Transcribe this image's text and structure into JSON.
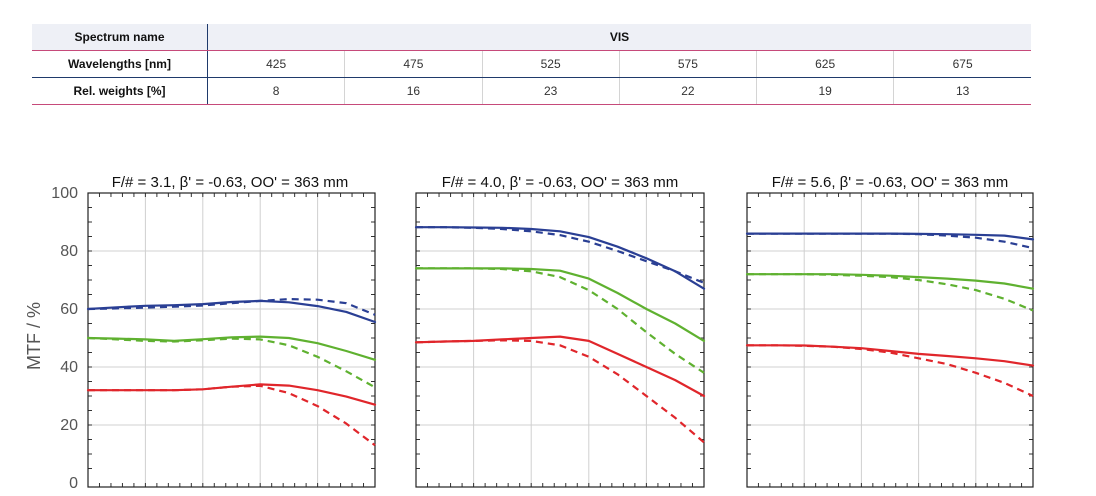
{
  "table": {
    "spectrum_label": "Spectrum name",
    "spectrum_value": "VIS",
    "wavelength_label": "Wavelengths [nm]",
    "wavelengths": [
      "425",
      "475",
      "525",
      "575",
      "625",
      "675"
    ],
    "weights_label": "Rel. weights [%]",
    "weights": [
      "8",
      "16",
      "23",
      "22",
      "19",
      "13"
    ]
  },
  "y_axis": {
    "label": "MTF / %",
    "ticks": [
      "100",
      "80",
      "60",
      "40",
      "20",
      "0"
    ]
  },
  "colors": {
    "blue": "#2a3f94",
    "green": "#5fb130",
    "red": "#e0262b"
  },
  "chart_data": [
    {
      "type": "line",
      "title": "F/# = 3.1, β' = -0.63, OO' = 363 mm",
      "ylim": [
        0,
        100
      ],
      "xlim": [
        0,
        1
      ],
      "series": [
        {
          "color": "blue",
          "style": "solid",
          "x": [
            0,
            0.1,
            0.2,
            0.3,
            0.4,
            0.5,
            0.6,
            0.7,
            0.8,
            0.9,
            1.0
          ],
          "values": [
            60,
            60.6,
            61.1,
            61.3,
            61.7,
            62.4,
            62.8,
            62.3,
            61.0,
            59.0,
            55.5
          ]
        },
        {
          "color": "blue",
          "style": "dashed",
          "x": [
            0,
            0.1,
            0.2,
            0.3,
            0.4,
            0.5,
            0.6,
            0.7,
            0.8,
            0.9,
            1.0
          ],
          "values": [
            60,
            60.2,
            60.5,
            60.8,
            61.2,
            62.0,
            62.8,
            63.4,
            63.2,
            62.0,
            58.0
          ]
        },
        {
          "color": "green",
          "style": "solid",
          "x": [
            0,
            0.1,
            0.2,
            0.3,
            0.4,
            0.5,
            0.6,
            0.7,
            0.8,
            0.9,
            1.0
          ],
          "values": [
            50,
            49.8,
            49.5,
            49.0,
            49.6,
            50.2,
            50.5,
            50.0,
            48.2,
            45.5,
            42.5
          ]
        },
        {
          "color": "green",
          "style": "dashed",
          "x": [
            0,
            0.1,
            0.2,
            0.3,
            0.4,
            0.5,
            0.6,
            0.7,
            0.8,
            0.9,
            1.0
          ],
          "values": [
            50,
            49.5,
            49.0,
            48.8,
            49.2,
            49.8,
            49.5,
            47.5,
            43.5,
            38.5,
            33.0
          ]
        },
        {
          "color": "red",
          "style": "solid",
          "x": [
            0,
            0.1,
            0.2,
            0.3,
            0.4,
            0.5,
            0.6,
            0.7,
            0.8,
            0.9,
            1.0
          ],
          "values": [
            32,
            32,
            32,
            32,
            32.3,
            33.2,
            34.0,
            33.6,
            32.0,
            29.8,
            27.0
          ]
        },
        {
          "color": "red",
          "style": "dashed",
          "x": [
            0,
            0.1,
            0.2,
            0.3,
            0.4,
            0.5,
            0.6,
            0.7,
            0.8,
            0.9,
            1.0
          ],
          "values": [
            32,
            32,
            32,
            32,
            32.3,
            33.2,
            33.5,
            31.0,
            26.5,
            20.5,
            13.0
          ]
        }
      ]
    },
    {
      "type": "line",
      "title": "F/# = 4.0, β' = -0.63, OO' = 363 mm",
      "ylim": [
        0,
        100
      ],
      "xlim": [
        0,
        1
      ],
      "series": [
        {
          "color": "blue",
          "style": "solid",
          "x": [
            0,
            0.1,
            0.2,
            0.3,
            0.4,
            0.5,
            0.6,
            0.7,
            0.8,
            0.9,
            1.0
          ],
          "values": [
            88.2,
            88.2,
            88.1,
            88.0,
            87.6,
            86.8,
            84.8,
            81.5,
            77.5,
            73.0,
            67.0
          ]
        },
        {
          "color": "blue",
          "style": "dashed",
          "x": [
            0,
            0.1,
            0.2,
            0.3,
            0.4,
            0.5,
            0.6,
            0.7,
            0.8,
            0.9,
            1.0
          ],
          "values": [
            88.2,
            88.2,
            88.0,
            87.6,
            86.8,
            85.5,
            83.2,
            80.0,
            76.5,
            73.0,
            69.0
          ]
        },
        {
          "color": "green",
          "style": "solid",
          "x": [
            0,
            0.1,
            0.2,
            0.3,
            0.4,
            0.5,
            0.6,
            0.7,
            0.8,
            0.9,
            1.0
          ],
          "values": [
            74,
            74,
            74,
            74,
            73.8,
            73.2,
            70.5,
            65.5,
            60.0,
            55.0,
            49.0
          ]
        },
        {
          "color": "green",
          "style": "dashed",
          "x": [
            0,
            0.1,
            0.2,
            0.3,
            0.4,
            0.5,
            0.6,
            0.7,
            0.8,
            0.9,
            1.0
          ],
          "values": [
            74,
            74,
            74,
            73.8,
            73.0,
            71.0,
            66.5,
            60.0,
            52.0,
            44.5,
            38.0
          ]
        },
        {
          "color": "red",
          "style": "solid",
          "x": [
            0,
            0.1,
            0.2,
            0.3,
            0.4,
            0.5,
            0.6,
            0.7,
            0.8,
            0.9,
            1.0
          ],
          "values": [
            48.5,
            48.8,
            49.0,
            49.5,
            50.0,
            50.5,
            49.0,
            44.5,
            40.0,
            35.5,
            30.0
          ]
        },
        {
          "color": "red",
          "style": "dashed",
          "x": [
            0,
            0.1,
            0.2,
            0.3,
            0.4,
            0.5,
            0.6,
            0.7,
            0.8,
            0.9,
            1.0
          ],
          "values": [
            48.5,
            48.8,
            49.0,
            49.2,
            49.0,
            47.5,
            43.5,
            37.5,
            30.0,
            22.5,
            14.0
          ]
        }
      ]
    },
    {
      "type": "line",
      "title": "F/# = 5.6, β' = -0.63, OO' = 363 mm",
      "ylim": [
        0,
        100
      ],
      "xlim": [
        0,
        1
      ],
      "series": [
        {
          "color": "blue",
          "style": "solid",
          "x": [
            0,
            0.1,
            0.2,
            0.3,
            0.4,
            0.5,
            0.6,
            0.7,
            0.8,
            0.9,
            1.0
          ],
          "values": [
            86.0,
            86.0,
            86.0,
            86.0,
            86.0,
            86.0,
            85.9,
            85.8,
            85.6,
            85.3,
            84.0
          ]
        },
        {
          "color": "blue",
          "style": "dashed",
          "x": [
            0,
            0.1,
            0.2,
            0.3,
            0.4,
            0.5,
            0.6,
            0.7,
            0.8,
            0.9,
            1.0
          ],
          "values": [
            86.0,
            86.0,
            86.0,
            86.0,
            86.0,
            86.0,
            85.8,
            85.3,
            84.6,
            83.2,
            81.0
          ]
        },
        {
          "color": "green",
          "style": "solid",
          "x": [
            0,
            0.1,
            0.2,
            0.3,
            0.4,
            0.5,
            0.6,
            0.7,
            0.8,
            0.9,
            1.0
          ],
          "values": [
            72.0,
            72.0,
            72.0,
            72.0,
            71.8,
            71.5,
            71.0,
            70.5,
            69.8,
            68.8,
            67.0
          ]
        },
        {
          "color": "green",
          "style": "dashed",
          "x": [
            0,
            0.1,
            0.2,
            0.3,
            0.4,
            0.5,
            0.6,
            0.7,
            0.8,
            0.9,
            1.0
          ],
          "values": [
            72.0,
            72.0,
            72.0,
            71.8,
            71.5,
            71.0,
            70.0,
            68.5,
            66.5,
            63.5,
            59.5
          ]
        },
        {
          "color": "red",
          "style": "solid",
          "x": [
            0,
            0.1,
            0.2,
            0.3,
            0.4,
            0.5,
            0.6,
            0.7,
            0.8,
            0.9,
            1.0
          ],
          "values": [
            47.5,
            47.5,
            47.4,
            47.0,
            46.5,
            45.5,
            44.5,
            43.8,
            43.0,
            42.0,
            40.5
          ]
        },
        {
          "color": "red",
          "style": "dashed",
          "x": [
            0,
            0.1,
            0.2,
            0.3,
            0.4,
            0.5,
            0.6,
            0.7,
            0.8,
            0.9,
            1.0
          ],
          "values": [
            47.5,
            47.5,
            47.3,
            47.0,
            46.2,
            45.0,
            43.0,
            41.0,
            38.0,
            34.5,
            30.0
          ]
        }
      ]
    }
  ]
}
